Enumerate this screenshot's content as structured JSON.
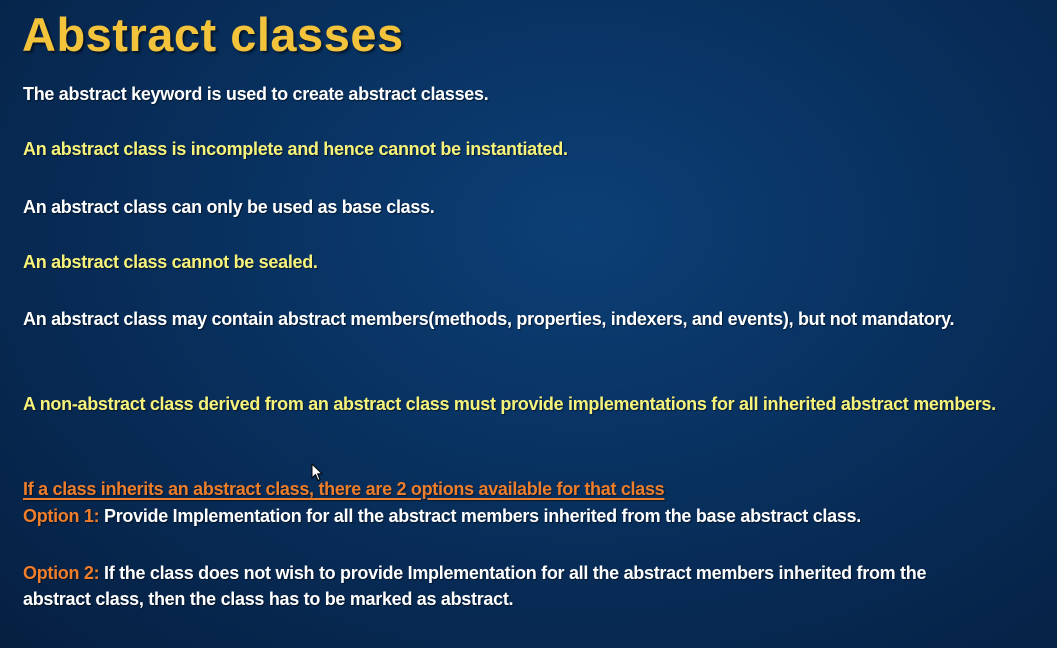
{
  "slide": {
    "title": "Abstract classes",
    "points": [
      "The abstract keyword is used to create abstract classes.",
      "An abstract class is incomplete and hence cannot be instantiated.",
      "An abstract class can only be used as base class.",
      "An abstract class cannot be sealed.",
      "An abstract class may contain abstract members(methods, properties, indexers, and events), but not mandatory.",
      "A non-abstract class derived from an abstract class must provide implementations for all inherited abstract members."
    ],
    "options_heading": "If a class inherits an abstract class, there are 2 options available for that class",
    "options": [
      {
        "label": "Option 1:",
        "text": " Provide Implementation for all the abstract members inherited from the base abstract class."
      },
      {
        "label": "Option 2:",
        "text": " If the class does not wish to provide Implementation for all the abstract members inherited from the abstract class, then the class has to be marked as abstract."
      }
    ],
    "colors": {
      "title": "#f3c33c",
      "white_text": "#ffffff",
      "yellow_text": "#f7f37a",
      "option_accent": "#ee7e2b",
      "background": "#08305e"
    },
    "cursor_icon": "mouse-pointer-icon"
  }
}
